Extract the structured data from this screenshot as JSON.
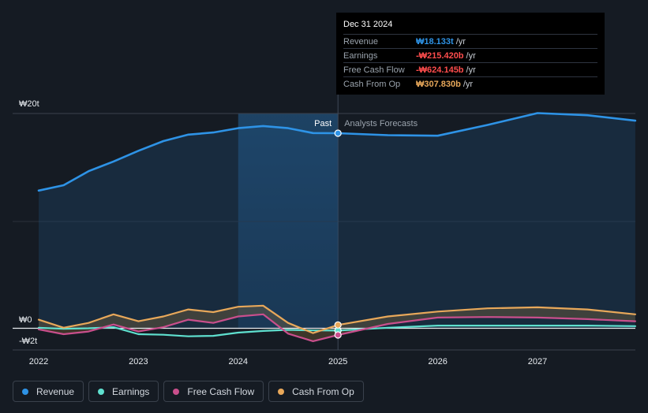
{
  "chart_data": {
    "type": "line",
    "currency": "₩",
    "y_tick_labels": [
      "₩20t",
      "₩0",
      "-₩2t"
    ],
    "x_tick_labels": [
      "2022",
      "2023",
      "2024",
      "2025",
      "2026",
      "2027"
    ],
    "ylim": [
      -2,
      20
    ],
    "xlim": [
      2021.75,
      2027.98
    ],
    "past_label": "Past",
    "forecast_label": "Analysts Forecasts",
    "past_end": 2025.0,
    "highlight_start": 2024.0,
    "series": [
      {
        "name": "Revenue",
        "color": "#2e93e6",
        "points": [
          [
            2022.0,
            12.8
          ],
          [
            2022.25,
            13.3
          ],
          [
            2022.5,
            14.6
          ],
          [
            2022.75,
            15.5
          ],
          [
            2023.0,
            16.5
          ],
          [
            2023.25,
            17.4
          ],
          [
            2023.5,
            18.0
          ],
          [
            2023.75,
            18.2
          ],
          [
            2024.0,
            18.6
          ],
          [
            2024.25,
            18.8
          ],
          [
            2024.5,
            18.6
          ],
          [
            2024.75,
            18.15
          ],
          [
            2025.0,
            18.13
          ],
          [
            2025.5,
            17.95
          ],
          [
            2026.0,
            17.9
          ],
          [
            2026.5,
            18.9
          ],
          [
            2027.0,
            20.0
          ],
          [
            2027.5,
            19.8
          ],
          [
            2027.98,
            19.3
          ]
        ]
      },
      {
        "name": "Earnings",
        "color": "#5fe0cf",
        "points": [
          [
            2022.0,
            0.05
          ],
          [
            2022.25,
            -0.05
          ],
          [
            2022.5,
            0.0
          ],
          [
            2022.75,
            0.1
          ],
          [
            2023.0,
            -0.55
          ],
          [
            2023.25,
            -0.6
          ],
          [
            2023.5,
            -0.75
          ],
          [
            2023.75,
            -0.7
          ],
          [
            2024.0,
            -0.4
          ],
          [
            2024.25,
            -0.25
          ],
          [
            2024.5,
            -0.15
          ],
          [
            2024.75,
            -0.2
          ],
          [
            2025.0,
            -0.215
          ],
          [
            2025.5,
            0.05
          ],
          [
            2026.0,
            0.25
          ],
          [
            2026.5,
            0.25
          ],
          [
            2027.0,
            0.25
          ],
          [
            2027.5,
            0.25
          ],
          [
            2027.98,
            0.2
          ]
        ]
      },
      {
        "name": "Free Cash Flow",
        "color": "#c94f8c",
        "points": [
          [
            2022.0,
            -0.1
          ],
          [
            2022.25,
            -0.55
          ],
          [
            2022.5,
            -0.3
          ],
          [
            2022.75,
            0.35
          ],
          [
            2023.0,
            -0.3
          ],
          [
            2023.25,
            0.1
          ],
          [
            2023.5,
            0.8
          ],
          [
            2023.75,
            0.5
          ],
          [
            2024.0,
            1.1
          ],
          [
            2024.25,
            1.3
          ],
          [
            2024.5,
            -0.5
          ],
          [
            2024.75,
            -1.2
          ],
          [
            2025.0,
            -0.624
          ],
          [
            2025.5,
            0.4
          ],
          [
            2026.0,
            1.0
          ],
          [
            2026.5,
            1.05
          ],
          [
            2027.0,
            1.0
          ],
          [
            2027.5,
            0.85
          ],
          [
            2027.98,
            0.65
          ]
        ]
      },
      {
        "name": "Cash From Op",
        "color": "#e8a85a",
        "points": [
          [
            2022.0,
            0.8
          ],
          [
            2022.25,
            0.05
          ],
          [
            2022.5,
            0.5
          ],
          [
            2022.75,
            1.3
          ],
          [
            2023.0,
            0.65
          ],
          [
            2023.25,
            1.1
          ],
          [
            2023.5,
            1.75
          ],
          [
            2023.75,
            1.5
          ],
          [
            2024.0,
            2.0
          ],
          [
            2024.25,
            2.1
          ],
          [
            2024.5,
            0.5
          ],
          [
            2024.75,
            -0.45
          ],
          [
            2025.0,
            0.308
          ],
          [
            2025.5,
            1.1
          ],
          [
            2026.0,
            1.55
          ],
          [
            2026.5,
            1.85
          ],
          [
            2027.0,
            1.95
          ],
          [
            2027.5,
            1.75
          ],
          [
            2027.98,
            1.3
          ]
        ]
      }
    ]
  },
  "tooltip": {
    "date": "Dec 31 2024",
    "rows": [
      {
        "label": "Revenue",
        "value": "₩18.133t",
        "unit": "/yr",
        "color": "#2e93e6"
      },
      {
        "label": "Earnings",
        "value": "-₩215.420b",
        "unit": "/yr",
        "color": "#ff4d4d"
      },
      {
        "label": "Free Cash Flow",
        "value": "-₩624.145b",
        "unit": "/yr",
        "color": "#ff4d4d"
      },
      {
        "label": "Cash From Op",
        "value": "₩307.830b",
        "unit": "/yr",
        "color": "#e8a85a"
      }
    ]
  },
  "legend": [
    {
      "label": "Revenue",
      "color": "#2e93e6"
    },
    {
      "label": "Earnings",
      "color": "#5fe0cf"
    },
    {
      "label": "Free Cash Flow",
      "color": "#c94f8c"
    },
    {
      "label": "Cash From Op",
      "color": "#e8a85a"
    }
  ]
}
